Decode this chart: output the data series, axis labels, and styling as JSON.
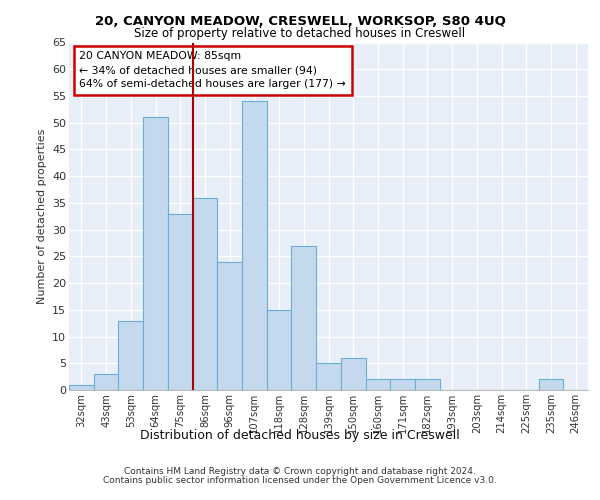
{
  "title1": "20, CANYON MEADOW, CRESWELL, WORKSOP, S80 4UQ",
  "title2": "Size of property relative to detached houses in Creswell",
  "xlabel": "Distribution of detached houses by size in Creswell",
  "ylabel": "Number of detached properties",
  "categories": [
    "32sqm",
    "43sqm",
    "53sqm",
    "64sqm",
    "75sqm",
    "86sqm",
    "96sqm",
    "107sqm",
    "118sqm",
    "128sqm",
    "139sqm",
    "150sqm",
    "160sqm",
    "171sqm",
    "182sqm",
    "193sqm",
    "203sqm",
    "214sqm",
    "225sqm",
    "235sqm",
    "246sqm"
  ],
  "values": [
    1,
    3,
    13,
    51,
    33,
    36,
    24,
    54,
    15,
    27,
    5,
    6,
    2,
    2,
    2,
    0,
    0,
    0,
    0,
    2,
    0
  ],
  "bar_color": "#c5d9ee",
  "bar_edge_color": "#6aaed6",
  "annotation_text_line1": "20 CANYON MEADOW: 85sqm",
  "annotation_text_line2": "← 34% of detached houses are smaller (94)",
  "annotation_text_line3": "64% of semi-detached houses are larger (177) →",
  "annotation_box_color": "#ffffff",
  "annotation_box_edge_color": "#cc0000",
  "marker_line_color": "#aa0000",
  "background_color": "#e8eef8",
  "grid_color": "#ffffff",
  "footer1": "Contains HM Land Registry data © Crown copyright and database right 2024.",
  "footer2": "Contains public sector information licensed under the Open Government Licence v3.0.",
  "ylim": [
    0,
    65
  ],
  "yticks": [
    0,
    5,
    10,
    15,
    20,
    25,
    30,
    35,
    40,
    45,
    50,
    55,
    60,
    65
  ]
}
